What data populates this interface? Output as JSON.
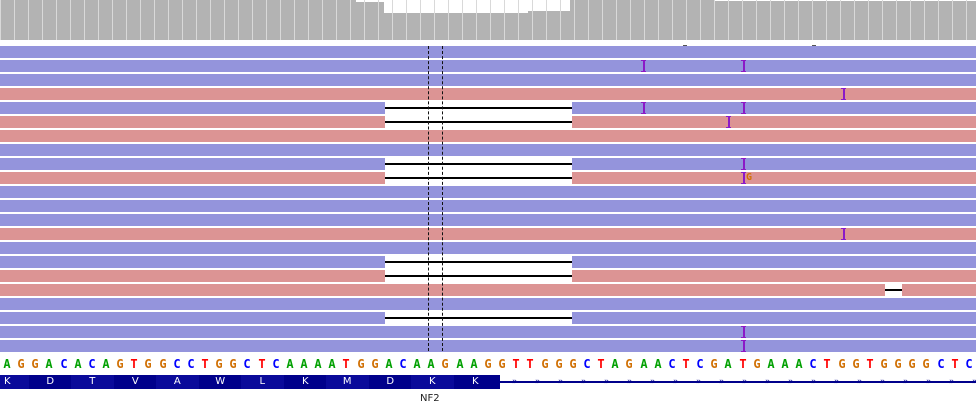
{
  "coverage": {
    "color": "#b3b3b3",
    "segments": [
      {
        "from": 0,
        "to": 356,
        "level": 1.0
      },
      {
        "from": 356,
        "to": 384,
        "level": 0.95
      },
      {
        "from": 384,
        "to": 528,
        "level": 0.68
      },
      {
        "from": 470,
        "to": 500,
        "level": 0.62
      },
      {
        "from": 528,
        "to": 570,
        "level": 0.72
      },
      {
        "from": 570,
        "to": 714,
        "level": 1.0
      },
      {
        "from": 714,
        "to": 976,
        "level": 0.97
      }
    ]
  },
  "read_colors": {
    "forward": "#9494dc",
    "reverse": "#dc9494",
    "insertion": "#8b1ac7",
    "gap": "#ffffff"
  },
  "reads": [
    {
      "strand": "forward",
      "insertions": []
    },
    {
      "strand": "forward",
      "insertions": [
        643,
        743
      ]
    },
    {
      "strand": "forward",
      "insertions": []
    },
    {
      "strand": "reverse",
      "insertions": [
        843
      ]
    },
    {
      "strand": "forward",
      "insertions": [
        643,
        743
      ],
      "deletion": true
    },
    {
      "strand": "reverse",
      "insertions": [
        728
      ],
      "deletion": true
    },
    {
      "strand": "reverse",
      "insertions": []
    },
    {
      "strand": "forward",
      "insertions": []
    },
    {
      "strand": "forward",
      "insertions": [
        743
      ],
      "deletion": true
    },
    {
      "strand": "reverse",
      "insertions": [
        743
      ],
      "deletion": true,
      "mismatch": {
        "base": "G",
        "color": "#d17105"
      }
    },
    {
      "strand": "forward",
      "insertions": []
    },
    {
      "strand": "forward",
      "insertions": []
    },
    {
      "strand": "forward",
      "insertions": []
    },
    {
      "strand": "reverse",
      "insertions": [
        843
      ]
    },
    {
      "strand": "forward",
      "insertions": []
    },
    {
      "strand": "forward",
      "insertions": [],
      "deletion": true
    },
    {
      "strand": "reverse",
      "insertions": [],
      "deletion": true
    },
    {
      "strand": "reverse",
      "insertions": [],
      "small_gap": true
    },
    {
      "strand": "forward",
      "insertions": []
    },
    {
      "strand": "forward",
      "insertions": [],
      "deletion": true
    },
    {
      "strand": "forward",
      "insertions": [
        743
      ]
    },
    {
      "strand": "forward",
      "insertions": [
        743
      ]
    }
  ],
  "reference": {
    "sequence": "AGGACACAGTGGCCTGGCTCAAAATGGACAAGAAGGTTGGGCTAGAACTCGATGAAACTGGTGGGGCTC",
    "base_colors": {
      "A": "#00a000",
      "C": "#0000ff",
      "G": "#d17105",
      "T": "#ff0000"
    }
  },
  "gene": {
    "name": "NF2",
    "amino_acids": [
      "K",
      "D",
      "T",
      "V",
      "A",
      "W",
      "L",
      "K",
      "M",
      "D",
      "K",
      "K"
    ],
    "exon_color": "#00008b"
  }
}
